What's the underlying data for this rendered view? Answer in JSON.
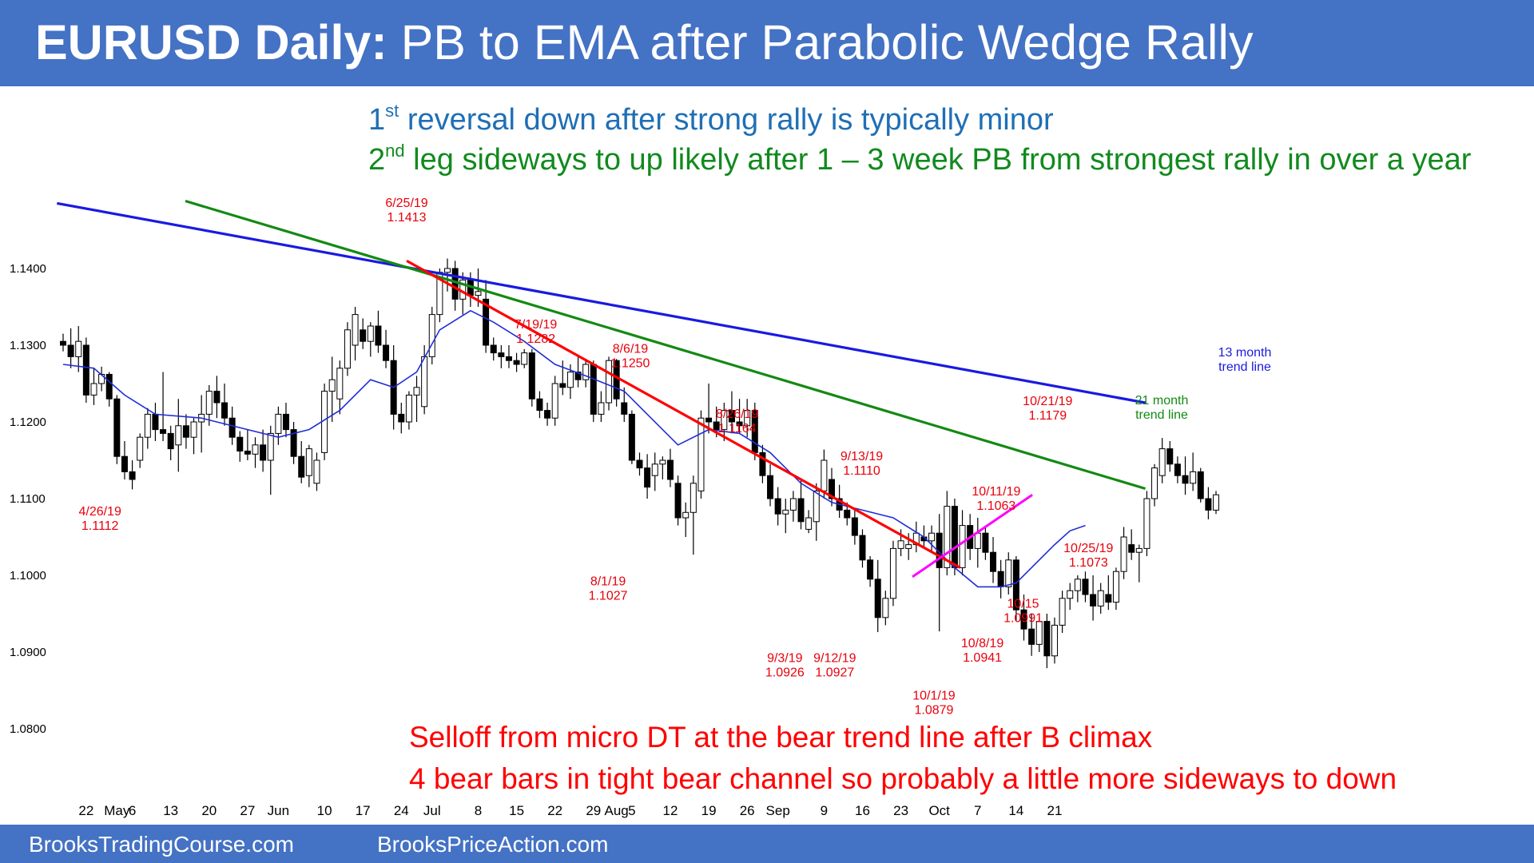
{
  "banner": {
    "title_bold": "EURUSD Daily:",
    "title_rest": "PB to EMA after Parabolic Wedge Rally"
  },
  "subtitles": {
    "line1_pre": "1",
    "line1_sup": "st",
    "line1_post": " reversal down after strong rally is typically minor",
    "line2_pre": "2",
    "line2_sup": "nd",
    "line2_post": " leg sideways to up likely after 1 – 3 week PB from strongest rally in over a year"
  },
  "bottom_notes": [
    "Selloff from micro DT at the bear trend line after B climax",
    "4 bear bars in tight bear channel so probably a little more sideways to down"
  ],
  "footer": {
    "left": "BrooksTradingCourse.com",
    "right": "BrooksPriceAction.com"
  },
  "colors": {
    "banner": "#4472c4",
    "bull_body": "#ffffff",
    "bear_body": "#000000",
    "ema": "#1f2ed8",
    "trend13": "#1a1ae0",
    "trend21": "#138a13",
    "bear_trend": "#ff0000",
    "wedge_line": "#ff00ff",
    "annotation": "#e8000b"
  },
  "chart_data": {
    "type": "candlestick",
    "title": "EURUSD Daily: PB to EMA after Parabolic Wedge Rally",
    "y_ticks": [
      "1.1400",
      "1.1300",
      "1.1200",
      "1.1100",
      "1.1000",
      "1.0900",
      "1.0800"
    ],
    "ylim": [
      1.078,
      1.15
    ],
    "x_ticks": [
      {
        "label": "22",
        "bar": 3
      },
      {
        "label": "May",
        "bar": 7
      },
      {
        "label": "6",
        "bar": 9
      },
      {
        "label": "13",
        "bar": 14
      },
      {
        "label": "20",
        "bar": 19
      },
      {
        "label": "27",
        "bar": 24
      },
      {
        "label": "Jun",
        "bar": 28
      },
      {
        "label": "10",
        "bar": 34
      },
      {
        "label": "17",
        "bar": 39
      },
      {
        "label": "24",
        "bar": 44
      },
      {
        "label": "Jul",
        "bar": 48
      },
      {
        "label": "8",
        "bar": 54
      },
      {
        "label": "15",
        "bar": 59
      },
      {
        "label": "22",
        "bar": 64
      },
      {
        "label": "29",
        "bar": 69
      },
      {
        "label": "Aug",
        "bar": 72
      },
      {
        "label": "5",
        "bar": 74
      },
      {
        "label": "12",
        "bar": 79
      },
      {
        "label": "19",
        "bar": 84
      },
      {
        "label": "26",
        "bar": 89
      },
      {
        "label": "Sep",
        "bar": 93
      },
      {
        "label": "9",
        "bar": 99
      },
      {
        "label": "16",
        "bar": 104
      },
      {
        "label": "23",
        "bar": 109
      },
      {
        "label": "Oct",
        "bar": 114
      },
      {
        "label": "7",
        "bar": 119
      },
      {
        "label": "14",
        "bar": 124
      },
      {
        "label": "21",
        "bar": 129
      }
    ],
    "candles": [
      [
        1.1305,
        1.1315,
        1.1292,
        1.13
      ],
      [
        1.13,
        1.1322,
        1.127,
        1.1285
      ],
      [
        1.1285,
        1.1325,
        1.1265,
        1.1305
      ],
      [
        1.13,
        1.131,
        1.1225,
        1.1235
      ],
      [
        1.1235,
        1.127,
        1.1222,
        1.125
      ],
      [
        1.125,
        1.1272,
        1.124,
        1.1262
      ],
      [
        1.1262,
        1.1265,
        1.122,
        1.123
      ],
      [
        1.123,
        1.1235,
        1.1145,
        1.1155
      ],
      [
        1.1155,
        1.1175,
        1.1125,
        1.1135
      ],
      [
        1.1135,
        1.115,
        1.1112,
        1.1125
      ],
      [
        1.115,
        1.1185,
        1.114,
        1.118
      ],
      [
        1.118,
        1.1218,
        1.1165,
        1.121
      ],
      [
        1.121,
        1.1225,
        1.1175,
        1.119
      ],
      [
        1.119,
        1.1265,
        1.1175,
        1.1185
      ],
      [
        1.1185,
        1.1195,
        1.115,
        1.1165
      ],
      [
        1.117,
        1.123,
        1.1135,
        1.1195
      ],
      [
        1.1195,
        1.121,
        1.1165,
        1.118
      ],
      [
        1.118,
        1.1205,
        1.1158,
        1.12
      ],
      [
        1.12,
        1.1235,
        1.116,
        1.121
      ],
      [
        1.121,
        1.1248,
        1.1195,
        1.124
      ],
      [
        1.124,
        1.126,
        1.1205,
        1.1225
      ],
      [
        1.1225,
        1.125,
        1.1195,
        1.1205
      ],
      [
        1.1205,
        1.122,
        1.117,
        1.118
      ],
      [
        1.118,
        1.1188,
        1.1148,
        1.1162
      ],
      [
        1.1162,
        1.119,
        1.115,
        1.1158
      ],
      [
        1.1158,
        1.118,
        1.114,
        1.117
      ],
      [
        1.117,
        1.119,
        1.1135,
        1.115
      ],
      [
        1.115,
        1.1195,
        1.1105,
        1.1185
      ],
      [
        1.1185,
        1.122,
        1.117,
        1.121
      ],
      [
        1.121,
        1.1225,
        1.118,
        1.119
      ],
      [
        1.119,
        1.12,
        1.1145,
        1.1155
      ],
      [
        1.1155,
        1.1175,
        1.112,
        1.1128
      ],
      [
        1.113,
        1.117,
        1.1115,
        1.1165
      ],
      [
        1.112,
        1.116,
        1.111,
        1.115
      ],
      [
        1.116,
        1.125,
        1.115,
        1.124
      ],
      [
        1.124,
        1.1285,
        1.12,
        1.1255
      ],
      [
        1.123,
        1.128,
        1.121,
        1.127
      ],
      [
        1.127,
        1.133,
        1.126,
        1.132
      ],
      [
        1.13,
        1.135,
        1.128,
        1.134
      ],
      [
        1.132,
        1.1335,
        1.1295,
        1.1305
      ],
      [
        1.1305,
        1.133,
        1.1285,
        1.1325
      ],
      [
        1.1325,
        1.1345,
        1.129,
        1.13
      ],
      [
        1.13,
        1.132,
        1.127,
        1.128
      ],
      [
        1.128,
        1.13,
        1.119,
        1.121
      ],
      [
        1.121,
        1.1225,
        1.1185,
        1.12
      ],
      [
        1.12,
        1.124,
        1.119,
        1.1235
      ],
      [
        1.1235,
        1.126,
        1.12,
        1.1245
      ],
      [
        1.122,
        1.13,
        1.121,
        1.1285
      ],
      [
        1.1285,
        1.135,
        1.1275,
        1.134
      ],
      [
        1.134,
        1.14,
        1.133,
        1.1395
      ],
      [
        1.1395,
        1.1413,
        1.137,
        1.14
      ],
      [
        1.14,
        1.141,
        1.1345,
        1.136
      ],
      [
        1.136,
        1.1395,
        1.134,
        1.1385
      ],
      [
        1.1385,
        1.1395,
        1.135,
        1.1365
      ],
      [
        1.1365,
        1.14,
        1.135,
        1.137
      ],
      [
        1.136,
        1.1385,
        1.129,
        1.13
      ],
      [
        1.13,
        1.131,
        1.128,
        1.129
      ],
      [
        1.129,
        1.13,
        1.127,
        1.1285
      ],
      [
        1.1285,
        1.13,
        1.127,
        1.128
      ],
      [
        1.128,
        1.129,
        1.1265,
        1.1275
      ],
      [
        1.1275,
        1.1295,
        1.127,
        1.129
      ],
      [
        1.129,
        1.1295,
        1.122,
        1.123
      ],
      [
        1.123,
        1.124,
        1.1205,
        1.1215
      ],
      [
        1.1215,
        1.1225,
        1.1195,
        1.1205
      ],
      [
        1.1205,
        1.126,
        1.1195,
        1.125
      ],
      [
        1.125,
        1.128,
        1.1235,
        1.1245
      ],
      [
        1.1245,
        1.1275,
        1.123,
        1.1265
      ],
      [
        1.1265,
        1.1285,
        1.1245,
        1.1255
      ],
      [
        1.1255,
        1.1282,
        1.1245,
        1.1275
      ],
      [
        1.1275,
        1.128,
        1.12,
        1.121
      ],
      [
        1.121,
        1.124,
        1.12,
        1.1225
      ],
      [
        1.1225,
        1.1285,
        1.1215,
        1.128
      ],
      [
        1.128,
        1.1282,
        1.122,
        1.123
      ],
      [
        1.1225,
        1.1245,
        1.12,
        1.121
      ],
      [
        1.121,
        1.1215,
        1.1145,
        1.115
      ],
      [
        1.115,
        1.116,
        1.113,
        1.114
      ],
      [
        1.114,
        1.1158,
        1.11,
        1.1115
      ],
      [
        1.113,
        1.116,
        1.111,
        1.1145
      ],
      [
        1.1145,
        1.1155,
        1.1125,
        1.115
      ],
      [
        1.115,
        1.1165,
        1.1115,
        1.1125
      ],
      [
        1.112,
        1.113,
        1.1065,
        1.1075
      ],
      [
        1.1075,
        1.1095,
        1.105,
        1.1082
      ],
      [
        1.1082,
        1.113,
        1.1027,
        1.112
      ],
      [
        1.111,
        1.1215,
        1.11,
        1.1205
      ],
      [
        1.1205,
        1.125,
        1.1185,
        1.12
      ],
      [
        1.12,
        1.122,
        1.118,
        1.119
      ],
      [
        1.119,
        1.1225,
        1.1175,
        1.1215
      ],
      [
        1.1215,
        1.124,
        1.1185,
        1.12
      ],
      [
        1.12,
        1.123,
        1.1185,
        1.1195
      ],
      [
        1.1195,
        1.123,
        1.118,
        1.1215
      ],
      [
        1.1215,
        1.1225,
        1.115,
        1.116
      ],
      [
        1.116,
        1.117,
        1.112,
        1.113
      ],
      [
        1.113,
        1.1145,
        1.109,
        1.11
      ],
      [
        1.11,
        1.1115,
        1.1065,
        1.108
      ],
      [
        1.108,
        1.11,
        1.1055,
        1.1085
      ],
      [
        1.1085,
        1.111,
        1.107,
        1.11
      ],
      [
        1.11,
        1.1125,
        1.106,
        1.107
      ],
      [
        1.106,
        1.1085,
        1.1055,
        1.1075
      ],
      [
        1.107,
        1.112,
        1.1045,
        1.111
      ],
      [
        1.111,
        1.1164,
        1.11,
        1.115
      ],
      [
        1.1125,
        1.114,
        1.109,
        1.11
      ],
      [
        1.11,
        1.1118,
        1.1075,
        1.1085
      ],
      [
        1.1085,
        1.1095,
        1.1065,
        1.1075
      ],
      [
        1.1075,
        1.1085,
        1.104,
        1.1052
      ],
      [
        1.1052,
        1.106,
        1.101,
        1.102
      ],
      [
        1.102,
        1.1025,
        1.0985,
        1.0995
      ],
      [
        1.0995,
        1.102,
        1.0926,
        1.0945
      ],
      [
        1.0945,
        1.098,
        1.0935,
        1.097
      ],
      [
        1.097,
        1.1045,
        1.096,
        1.1035
      ],
      [
        1.1035,
        1.106,
        1.1025,
        1.1045
      ],
      [
        1.1035,
        1.1055,
        1.102,
        1.104
      ],
      [
        1.104,
        1.107,
        1.103,
        1.1055
      ],
      [
        1.105,
        1.1065,
        1.1035,
        1.1045
      ],
      [
        1.1045,
        1.1065,
        1.103,
        1.1055
      ],
      [
        1.1055,
        1.108,
        1.0927,
        1.101
      ],
      [
        1.101,
        1.111,
        1.1,
        1.109
      ],
      [
        1.109,
        1.11,
        1.1,
        1.101
      ],
      [
        1.101,
        1.1085,
        1.1,
        1.1065
      ],
      [
        1.1065,
        1.108,
        1.102,
        1.1035
      ],
      [
        1.1035,
        1.1075,
        1.101,
        1.1055
      ],
      [
        1.1055,
        1.1065,
        1.102,
        1.103
      ],
      [
        1.103,
        1.105,
        1.099,
        1.1005
      ],
      [
        1.1005,
        1.102,
        1.097,
        1.0985
      ],
      [
        1.0985,
        1.103,
        1.0975,
        1.102
      ],
      [
        1.102,
        1.1025,
        1.094,
        1.0955
      ],
      [
        1.0955,
        1.0975,
        1.0915,
        1.093
      ],
      [
        1.093,
        1.095,
        1.0895,
        1.091
      ],
      [
        1.091,
        1.0945,
        1.09,
        1.094
      ],
      [
        1.094,
        1.095,
        1.0879,
        1.0895
      ],
      [
        1.0895,
        1.0945,
        1.0885,
        1.0935
      ],
      [
        1.0935,
        1.098,
        1.0925,
        1.097
      ],
      [
        1.097,
        1.099,
        1.0955,
        1.098
      ],
      [
        1.098,
        1.1,
        1.0965,
        1.0995
      ],
      [
        1.0995,
        1.1005,
        1.0965,
        1.0975
      ],
      [
        1.0975,
        1.1,
        1.0941,
        1.096
      ],
      [
        1.096,
        1.099,
        1.095,
        1.098
      ],
      [
        1.0975,
        1.1,
        1.0955,
        1.0965
      ],
      [
        1.0965,
        1.101,
        1.0955,
        1.1005
      ],
      [
        1.1005,
        1.1063,
        1.0995,
        1.105
      ],
      [
        1.104,
        1.106,
        1.102,
        1.103
      ],
      [
        1.103,
        1.104,
        1.0991,
        1.1035
      ],
      [
        1.1035,
        1.111,
        1.1025,
        1.11
      ],
      [
        1.11,
        1.1145,
        1.109,
        1.114
      ],
      [
        1.113,
        1.1179,
        1.112,
        1.1165
      ],
      [
        1.1165,
        1.1175,
        1.1135,
        1.1145
      ],
      [
        1.1145,
        1.1155,
        1.112,
        1.113
      ],
      [
        1.113,
        1.1155,
        1.1105,
        1.112
      ],
      [
        1.112,
        1.116,
        1.111,
        1.1135
      ],
      [
        1.1135,
        1.114,
        1.1095,
        1.11
      ],
      [
        1.11,
        1.1115,
        1.1073,
        1.1085
      ],
      [
        1.1085,
        1.111,
        1.108,
        1.1105
      ]
    ],
    "ema": [
      [
        0,
        1.1275
      ],
      [
        4,
        1.127
      ],
      [
        8,
        1.1235
      ],
      [
        12,
        1.121
      ],
      [
        18,
        1.1205
      ],
      [
        24,
        1.119
      ],
      [
        28,
        1.118
      ],
      [
        32,
        1.119
      ],
      [
        36,
        1.1215
      ],
      [
        40,
        1.1255
      ],
      [
        43,
        1.1245
      ],
      [
        46,
        1.1265
      ],
      [
        49,
        1.132
      ],
      [
        53,
        1.1345
      ],
      [
        56,
        1.133
      ],
      [
        60,
        1.1305
      ],
      [
        64,
        1.1275
      ],
      [
        68,
        1.126
      ],
      [
        73,
        1.124
      ],
      [
        76,
        1.121
      ],
      [
        80,
        1.117
      ],
      [
        84,
        1.119
      ],
      [
        88,
        1.1185
      ],
      [
        92,
        1.116
      ],
      [
        96,
        1.112
      ],
      [
        100,
        1.1095
      ],
      [
        104,
        1.1085
      ],
      [
        108,
        1.1075
      ],
      [
        112,
        1.105
      ],
      [
        116,
        1.101
      ],
      [
        119,
        1.0985
      ],
      [
        122,
        1.0985
      ],
      [
        124,
        1.099
      ],
      [
        126,
        1.101
      ],
      [
        129,
        1.104
      ],
      [
        131,
        1.1058
      ],
      [
        133,
        1.1065
      ]
    ],
    "trend_lines": [
      {
        "name": "13 month trend line",
        "from": {
          "bar": -0.8,
          "y": 1.1485
        },
        "to": {
          "bar": 140.8,
          "y": 1.1225
        }
      },
      {
        "name": "21 month trend line",
        "from": {
          "bar": 15.9,
          "y": 1.1488
        },
        "to": {
          "bar": 140.8,
          "y": 1.1113
        }
      },
      {
        "name": "bear trend line",
        "from": {
          "bar": 44.7,
          "y": 1.141
        },
        "to": {
          "bar": 116.7,
          "y": 1.101
        }
      },
      {
        "name": "wedge channel",
        "from": {
          "bar": 110.5,
          "y": 1.0998
        },
        "to": {
          "bar": 126.1,
          "y": 1.1105
        }
      }
    ],
    "labels_13": [
      "13 month",
      "trend line"
    ],
    "labels_21": [
      "21 month",
      "trend line"
    ],
    "annotations": [
      {
        "lines": [
          "6/25/19",
          "1.1413"
        ],
        "bar": 44.7,
        "y": 1.148
      },
      {
        "lines": [
          "4/26/19",
          "1.1112"
        ],
        "bar": 4.8,
        "y": 1.1078
      },
      {
        "lines": [
          "7/19/19",
          "1.1282"
        ],
        "bar": 61.5,
        "y": 1.1322
      },
      {
        "lines": [
          "8/6/19",
          "1.1250"
        ],
        "bar": 73.8,
        "y": 1.129
      },
      {
        "lines": [
          "8/26/19",
          "1.1164"
        ],
        "bar": 87.7,
        "y": 1.1205
      },
      {
        "lines": [
          "9/13/19",
          "1.1110"
        ],
        "bar": 103.9,
        "y": 1.115
      },
      {
        "lines": [
          "8/1/19",
          "1.1027"
        ],
        "bar": 70.9,
        "y": 1.0987
      },
      {
        "lines": [
          "9/3/19",
          "1.0926"
        ],
        "bar": 93.9,
        "y": 1.0887
      },
      {
        "lines": [
          "9/12/19",
          "1.0927"
        ],
        "bar": 100.4,
        "y": 1.0887
      },
      {
        "lines": [
          "10/1/19",
          "1.0879"
        ],
        "bar": 113.3,
        "y": 1.0838
      },
      {
        "lines": [
          "10/8/19",
          "1.0941"
        ],
        "bar": 119.6,
        "y": 1.0906
      },
      {
        "lines": [
          "10/15",
          "1.0991"
        ],
        "bar": 124.9,
        "y": 1.0958
      },
      {
        "lines": [
          "10/11/19",
          "1.1063"
        ],
        "bar": 121.4,
        "y": 1.1104
      },
      {
        "lines": [
          "10/21/19",
          "1.1179"
        ],
        "bar": 128.1,
        "y": 1.1222
      },
      {
        "lines": [
          "10/25/19",
          "1.1073"
        ],
        "bar": 133.4,
        "y": 1.103
      }
    ]
  }
}
